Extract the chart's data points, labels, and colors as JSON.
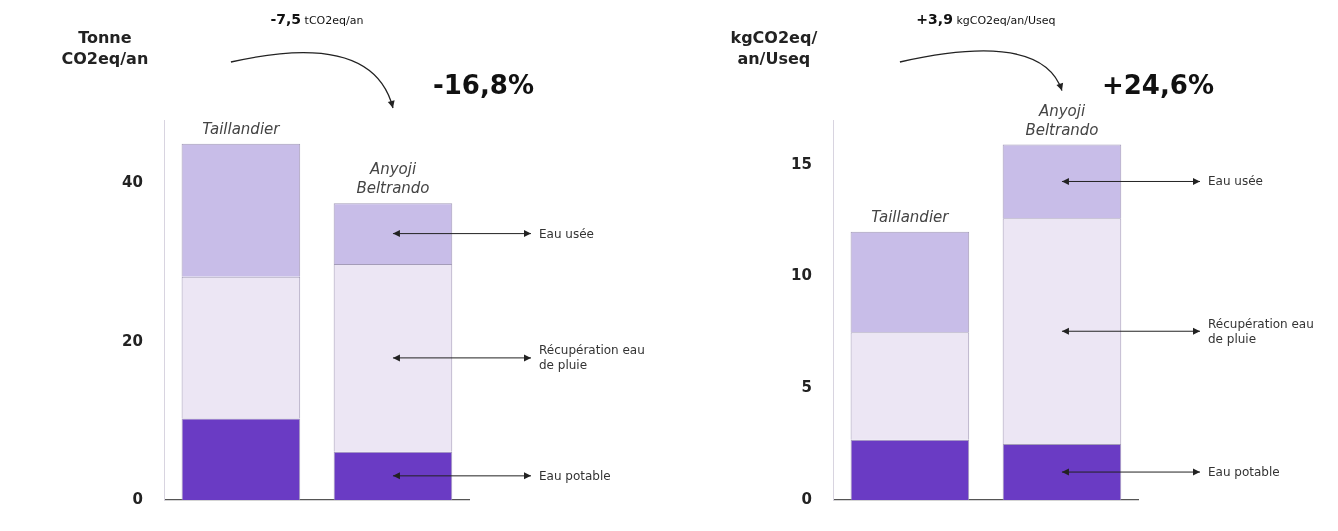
{
  "chart_data": [
    {
      "type": "bar",
      "stacked": true,
      "ylabel": "Tonne CO2eq/an",
      "categories": [
        "Taillandier",
        "Anyoji Beltrando"
      ],
      "series": [
        {
          "name": "Eau potable",
          "color": "#6a3bc4",
          "values": [
            10.3,
            6.1
          ]
        },
        {
          "name": "Récupération eau de pluie",
          "color": "#ece6f4",
          "values": [
            17.9,
            23.7
          ]
        },
        {
          "name": "Eau usée",
          "color": "#c8bde8",
          "values": [
            16.8,
            7.7
          ]
        }
      ],
      "ylim": [
        0,
        48
      ],
      "yticks": [
        0,
        20,
        40
      ],
      "annotations": [
        "-7,5 tCO2eq/an",
        "-16,8%"
      ]
    },
    {
      "type": "bar",
      "stacked": true,
      "ylabel": "kgCO2eq/an/Useq",
      "categories": [
        "Taillandier",
        "Anyoji Beltrando"
      ],
      "series": [
        {
          "name": "Eau potable",
          "color": "#6a3bc4",
          "values": [
            2.7,
            2.5
          ]
        },
        {
          "name": "Récupération eau de pluie",
          "color": "#ece6f4",
          "values": [
            4.8,
            10.1
          ]
        },
        {
          "name": "Eau usée",
          "color": "#c8bde8",
          "values": [
            4.5,
            3.3
          ]
        }
      ],
      "ylim": [
        0,
        17
      ],
      "yticks": [
        0,
        5,
        10,
        15
      ],
      "annotations": [
        "+3,9 kgCO2eq/an/Useq",
        "+24,6%"
      ]
    }
  ]
}
